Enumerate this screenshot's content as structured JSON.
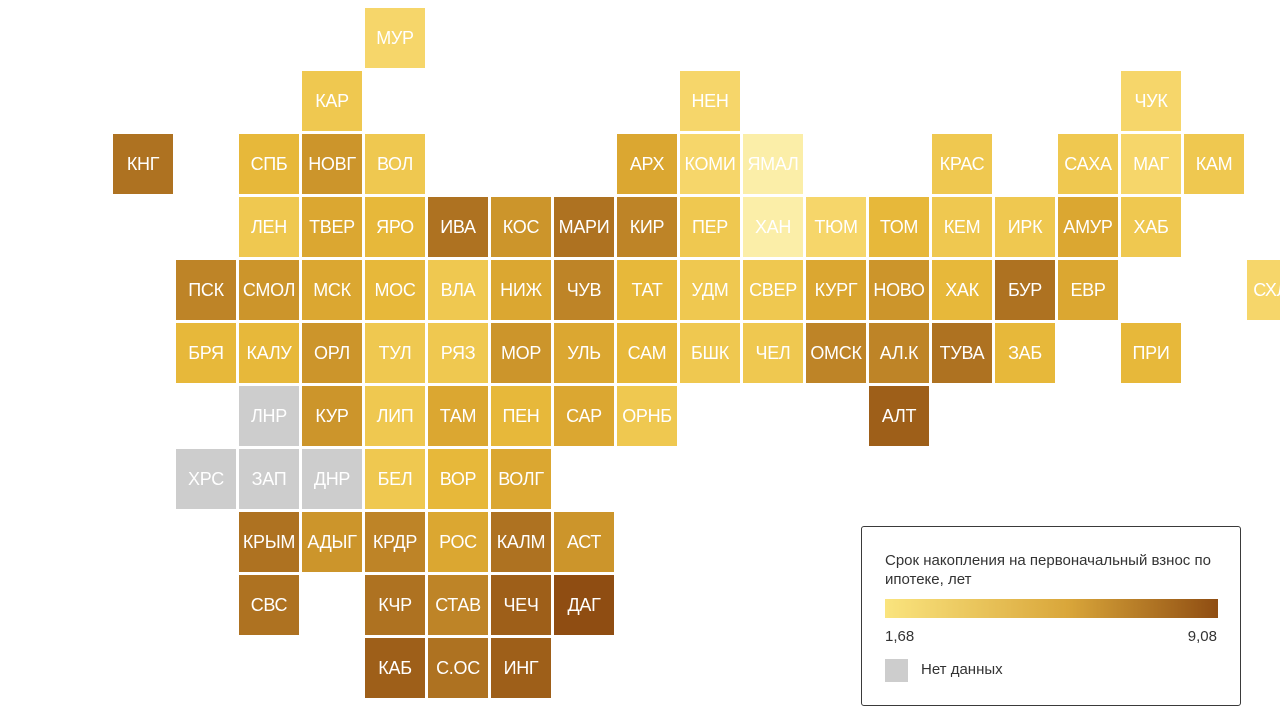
{
  "legend": {
    "title": "Срок накопления на первоначальный взнос по ипотеке, лет",
    "min_label": "1,68",
    "max_label": "9,08",
    "no_data_label": "Нет данных"
  },
  "colors": {
    "scale": [
      "#FAE47E",
      "#F6D66A",
      "#EFC850",
      "#E7B83A",
      "#DBA731",
      "#CC952B",
      "#BE8427",
      "#AE7221",
      "#9E5F19",
      "#8F4D12"
    ],
    "no_data": "#CDCDCD",
    "highlight": "#FBEEA8",
    "legend_gradient": [
      "#FAE47E",
      "#D9A63A",
      "#8F4D12"
    ]
  },
  "tiles": [
    {
      "label": "МУР",
      "row": 0,
      "col": 5,
      "level": 1
    },
    {
      "label": "КАР",
      "row": 1,
      "col": 4,
      "level": 2
    },
    {
      "label": "НЕН",
      "row": 1,
      "col": 10,
      "level": 1
    },
    {
      "label": "ЧУК",
      "row": 1,
      "col": 17,
      "level": 1
    },
    {
      "label": "КНГ",
      "row": 2,
      "col": 1,
      "level": 7
    },
    {
      "label": "СПБ",
      "row": 2,
      "col": 3,
      "level": 3
    },
    {
      "label": "НОВГ",
      "row": 2,
      "col": 4,
      "level": 5
    },
    {
      "label": "ВОЛ",
      "row": 2,
      "col": 5,
      "level": 2
    },
    {
      "label": "АРХ",
      "row": 2,
      "col": 9,
      "level": 4
    },
    {
      "label": "КОМИ",
      "row": 2,
      "col": 10,
      "level": 1
    },
    {
      "label": "ЯМАЛ",
      "row": 2,
      "col": 11,
      "level": "hl"
    },
    {
      "label": "КРАС",
      "row": 2,
      "col": 14,
      "level": 2
    },
    {
      "label": "САХА",
      "row": 2,
      "col": 16,
      "level": 2
    },
    {
      "label": "МАГ",
      "row": 2,
      "col": 17,
      "level": 1
    },
    {
      "label": "КАМ",
      "row": 2,
      "col": 18,
      "level": 2
    },
    {
      "label": "ЛЕН",
      "row": 3,
      "col": 3,
      "level": 2
    },
    {
      "label": "ТВЕР",
      "row": 3,
      "col": 4,
      "level": 4
    },
    {
      "label": "ЯРО",
      "row": 3,
      "col": 5,
      "level": 3
    },
    {
      "label": "ИВА",
      "row": 3,
      "col": 6,
      "level": 7
    },
    {
      "label": "КОС",
      "row": 3,
      "col": 7,
      "level": 5
    },
    {
      "label": "МАРИ",
      "row": 3,
      "col": 8,
      "level": 7
    },
    {
      "label": "КИР",
      "row": 3,
      "col": 9,
      "level": 6
    },
    {
      "label": "ПЕР",
      "row": 3,
      "col": 10,
      "level": 2
    },
    {
      "label": "ХАН",
      "row": 3,
      "col": 11,
      "level": "hl"
    },
    {
      "label": "ТЮМ",
      "row": 3,
      "col": 12,
      "level": 1
    },
    {
      "label": "ТОМ",
      "row": 3,
      "col": 13,
      "level": 3
    },
    {
      "label": "КЕМ",
      "row": 3,
      "col": 14,
      "level": 2
    },
    {
      "label": "ИРК",
      "row": 3,
      "col": 15,
      "level": 2
    },
    {
      "label": "АМУР",
      "row": 3,
      "col": 16,
      "level": 4
    },
    {
      "label": "ХАБ",
      "row": 3,
      "col": 17,
      "level": 2
    },
    {
      "label": "ПСК",
      "row": 4,
      "col": 2,
      "level": 6
    },
    {
      "label": "СМОЛ",
      "row": 4,
      "col": 3,
      "level": 5
    },
    {
      "label": "МСК",
      "row": 4,
      "col": 4,
      "level": 4
    },
    {
      "label": "МОС",
      "row": 4,
      "col": 5,
      "level": 3
    },
    {
      "label": "ВЛА",
      "row": 4,
      "col": 6,
      "level": 2
    },
    {
      "label": "НИЖ",
      "row": 4,
      "col": 7,
      "level": 4
    },
    {
      "label": "ЧУВ",
      "row": 4,
      "col": 8,
      "level": 6
    },
    {
      "label": "ТАТ",
      "row": 4,
      "col": 9,
      "level": 3
    },
    {
      "label": "УДМ",
      "row": 4,
      "col": 10,
      "level": 2
    },
    {
      "label": "СВЕР",
      "row": 4,
      "col": 11,
      "level": 2
    },
    {
      "label": "КУРГ",
      "row": 4,
      "col": 12,
      "level": 4
    },
    {
      "label": "НОВО",
      "row": 4,
      "col": 13,
      "level": 5
    },
    {
      "label": "ХАК",
      "row": 4,
      "col": 14,
      "level": 3
    },
    {
      "label": "БУР",
      "row": 4,
      "col": 15,
      "level": 7
    },
    {
      "label": "ЕВР",
      "row": 4,
      "col": 16,
      "level": 4
    },
    {
      "label": "СХЛН",
      "row": 4,
      "col": 19,
      "level": 1
    },
    {
      "label": "БРЯ",
      "row": 5,
      "col": 2,
      "level": 3
    },
    {
      "label": "КАЛУ",
      "row": 5,
      "col": 3,
      "level": 3
    },
    {
      "label": "ОРЛ",
      "row": 5,
      "col": 4,
      "level": 5
    },
    {
      "label": "ТУЛ",
      "row": 5,
      "col": 5,
      "level": 2
    },
    {
      "label": "РЯЗ",
      "row": 5,
      "col": 6,
      "level": 2
    },
    {
      "label": "МОР",
      "row": 5,
      "col": 7,
      "level": 5
    },
    {
      "label": "УЛЬ",
      "row": 5,
      "col": 8,
      "level": 4
    },
    {
      "label": "САМ",
      "row": 5,
      "col": 9,
      "level": 3
    },
    {
      "label": "БШК",
      "row": 5,
      "col": 10,
      "level": 2
    },
    {
      "label": "ЧЕЛ",
      "row": 5,
      "col": 11,
      "level": 2
    },
    {
      "label": "ОМСК",
      "row": 5,
      "col": 12,
      "level": 6
    },
    {
      "label": "АЛ.К",
      "row": 5,
      "col": 13,
      "level": 6
    },
    {
      "label": "ТУВА",
      "row": 5,
      "col": 14,
      "level": 7
    },
    {
      "label": "ЗАБ",
      "row": 5,
      "col": 15,
      "level": 3
    },
    {
      "label": "ПРИ",
      "row": 5,
      "col": 17,
      "level": 3
    },
    {
      "label": "ЛНР",
      "row": 6,
      "col": 3,
      "level": "nd"
    },
    {
      "label": "КУР",
      "row": 6,
      "col": 4,
      "level": 5
    },
    {
      "label": "ЛИП",
      "row": 6,
      "col": 5,
      "level": 2
    },
    {
      "label": "ТАМ",
      "row": 6,
      "col": 6,
      "level": 4
    },
    {
      "label": "ПЕН",
      "row": 6,
      "col": 7,
      "level": 3
    },
    {
      "label": "САР",
      "row": 6,
      "col": 8,
      "level": 4
    },
    {
      "label": "ОРНБ",
      "row": 6,
      "col": 9,
      "level": 2
    },
    {
      "label": "АЛТ",
      "row": 6,
      "col": 13,
      "level": 8
    },
    {
      "label": "ХРС",
      "row": 7,
      "col": 2,
      "level": "nd"
    },
    {
      "label": "ЗАП",
      "row": 7,
      "col": 3,
      "level": "nd"
    },
    {
      "label": "ДНР",
      "row": 7,
      "col": 4,
      "level": "nd"
    },
    {
      "label": "БЕЛ",
      "row": 7,
      "col": 5,
      "level": 2
    },
    {
      "label": "ВОР",
      "row": 7,
      "col": 6,
      "level": 3
    },
    {
      "label": "ВОЛГ",
      "row": 7,
      "col": 7,
      "level": 4
    },
    {
      "label": "КРЫМ",
      "row": 8,
      "col": 3,
      "level": 7
    },
    {
      "label": "АДЫГ",
      "row": 8,
      "col": 4,
      "level": 5
    },
    {
      "label": "КРДР",
      "row": 8,
      "col": 5,
      "level": 6
    },
    {
      "label": "РОС",
      "row": 8,
      "col": 6,
      "level": 4
    },
    {
      "label": "КАЛМ",
      "row": 8,
      "col": 7,
      "level": 7
    },
    {
      "label": "АСТ",
      "row": 8,
      "col": 8,
      "level": 5
    },
    {
      "label": "СВС",
      "row": 9,
      "col": 3,
      "level": 7
    },
    {
      "label": "КЧР",
      "row": 9,
      "col": 5,
      "level": 7
    },
    {
      "label": "СТАВ",
      "row": 9,
      "col": 6,
      "level": 6
    },
    {
      "label": "ЧЕЧ",
      "row": 9,
      "col": 7,
      "level": 8
    },
    {
      "label": "ДАГ",
      "row": 9,
      "col": 8,
      "level": 9
    },
    {
      "label": "КАБ",
      "row": 10,
      "col": 5,
      "level": 8
    },
    {
      "label": "С.ОС",
      "row": 10,
      "col": 6,
      "level": 7
    },
    {
      "label": "ИНГ",
      "row": 10,
      "col": 7,
      "level": 8
    }
  ]
}
